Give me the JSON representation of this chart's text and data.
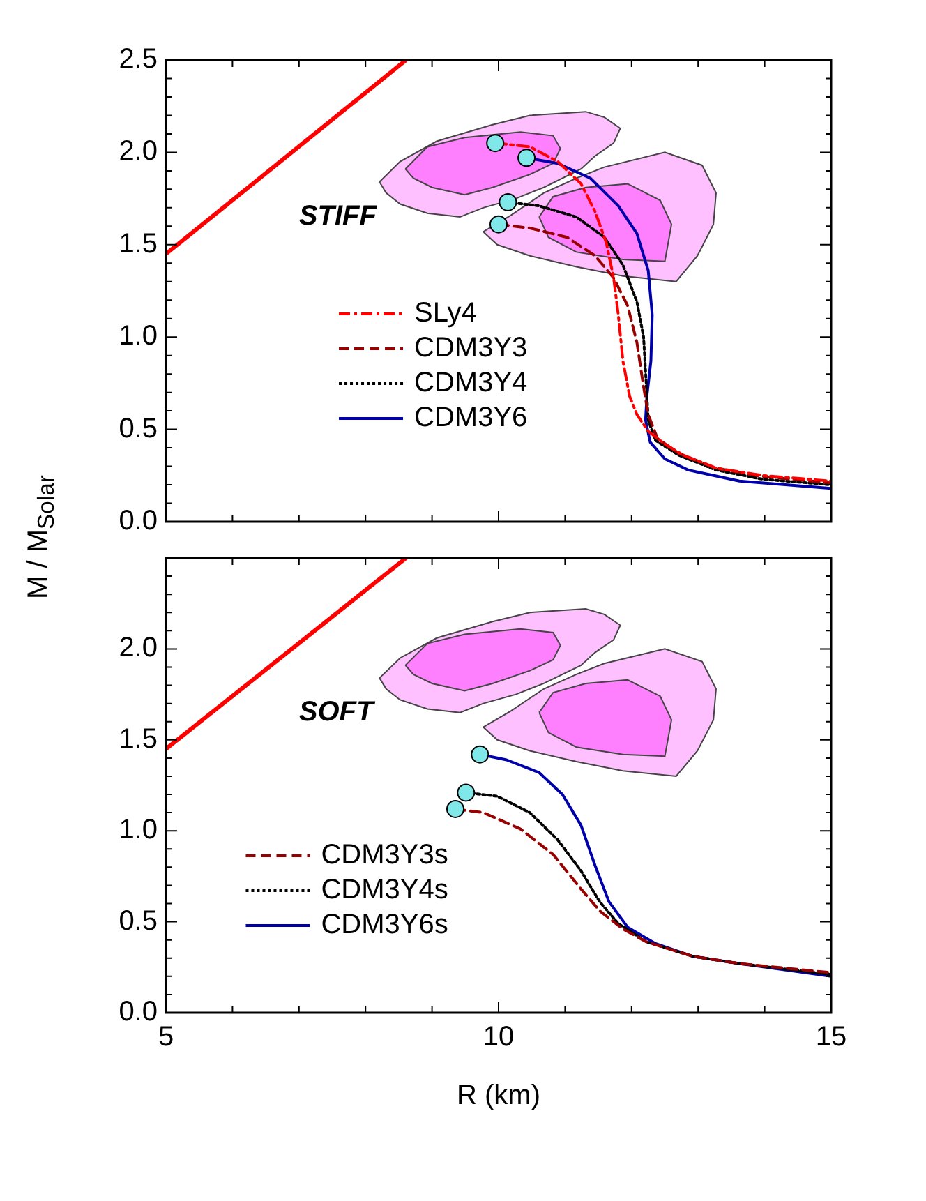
{
  "chart_data": [
    {
      "type": "line",
      "ylabel": "M / M$_{Solar}$",
      "xlim": [
        5,
        15
      ],
      "xticks": [
        5,
        {
          "value": 6,
          "label": null
        },
        {
          "value": 7,
          "label": null
        },
        {
          "value": 8,
          "label": null
        },
        {
          "value": 9,
          "label": null
        },
        10,
        {
          "value": 11,
          "label": null
        },
        {
          "value": 12,
          "label": null
        },
        {
          "value": 13,
          "label": null
        },
        {
          "value": 14,
          "label": null
        },
        15
      ],
      "ylim": [
        0,
        2.5
      ],
      "yticks": [
        {
          "value": 0,
          "label": "0.0"
        },
        {
          "value": 0.1,
          "label": null
        },
        {
          "value": 0.2,
          "label": null
        },
        {
          "value": 0.3,
          "label": null
        },
        {
          "value": 0.4,
          "label": null
        },
        0.5,
        {
          "value": 0.6,
          "label": null
        },
        {
          "value": 0.7,
          "label": null
        },
        {
          "value": 0.8,
          "label": null
        },
        {
          "value": 0.9,
          "label": null
        },
        {
          "value": 1,
          "label": "1.0"
        },
        {
          "value": 1.1,
          "label": null
        },
        {
          "value": 1.2,
          "label": null
        },
        {
          "value": 1.3,
          "label": null
        },
        {
          "value": 1.4,
          "label": null
        },
        1.5,
        {
          "value": 1.6,
          "label": null
        },
        {
          "value": 1.7,
          "label": null
        },
        {
          "value": 1.8,
          "label": null
        },
        {
          "value": 1.9,
          "label": null
        },
        {
          "value": 2,
          "label": "2.0"
        },
        {
          "value": 2.1,
          "label": null
        },
        {
          "value": 2.2,
          "label": null
        },
        {
          "value": 2.3,
          "label": null
        },
        {
          "value": 2.4,
          "label": null
        },
        2.5
      ],
      "tick_labels": "y",
      "legend": "center",
      "annotations": [
        "STIFF"
      ],
      "series": [
        {
          "type": "area",
          "color": "#ffc0ff",
          "x": [
            8.21,
            8.52,
            9.07,
            9.91,
            10.47,
            11.31,
            11.59,
            11.83,
            11.73,
            11.45,
            11.24,
            10.68,
            10.26,
            9.77,
            9.42,
            8.93,
            8.52,
            8.31
          ],
          "values": [
            1.84,
            1.95,
            2.06,
            2.15,
            2.2,
            2.22,
            2.19,
            2.13,
            2.05,
            1.98,
            1.91,
            1.81,
            1.75,
            1.7,
            1.65,
            1.67,
            1.72,
            1.78
          ]
        },
        {
          "type": "area",
          "color": "#ff80ff",
          "x": [
            8.6,
            8.93,
            9.49,
            10.33,
            10.82,
            10.93,
            10.82,
            10.47,
            9.91,
            9.49,
            9.0,
            8.72
          ],
          "values": [
            1.91,
            2.03,
            2.08,
            2.11,
            2.09,
            2.02,
            1.94,
            1.88,
            1.81,
            1.77,
            1.81,
            1.86
          ]
        },
        {
          "type": "area",
          "color": "#ffc0ff",
          "x": [
            9.77,
            10.19,
            10.68,
            11.17,
            11.59,
            12.5,
            13.06,
            13.27,
            13.23,
            12.99,
            12.67,
            11.87,
            11.17,
            10.47,
            9.98
          ],
          "values": [
            1.57,
            1.66,
            1.78,
            1.86,
            1.92,
            2.0,
            1.93,
            1.78,
            1.61,
            1.44,
            1.3,
            1.33,
            1.38,
            1.44,
            1.5
          ]
        },
        {
          "type": "area",
          "color": "#ff80ff",
          "x": [
            10.61,
            10.82,
            11.31,
            11.94,
            12.43,
            12.6,
            12.5,
            11.87,
            11.17,
            10.75
          ],
          "values": [
            1.65,
            1.76,
            1.81,
            1.83,
            1.74,
            1.61,
            1.41,
            1.42,
            1.46,
            1.54
          ]
        },
        {
          "type": "line",
          "color": "#ff0000",
          "line_style": "solid",
          "x": [
            5,
            8.61
          ],
          "values": [
            1.45,
            2.5
          ]
        },
        {
          "type": "line",
          "name": "SLy4",
          "color": "#ff0000",
          "line_style": "dashdot",
          "x": [
            9.95,
            10.47,
            10.89,
            11.24,
            11.45,
            11.62,
            11.73,
            11.8,
            11.87,
            11.97,
            12.08,
            12.25,
            12.5,
            12.78,
            13.27,
            13.97,
            15
          ],
          "values": [
            2.05,
            2.03,
            1.95,
            1.83,
            1.68,
            1.51,
            1.32,
            1.12,
            0.87,
            0.68,
            0.58,
            0.49,
            0.42,
            0.36,
            0.29,
            0.25,
            0.22
          ]
        },
        {
          "type": "line",
          "name": "CDM3Y3",
          "color": "#990000",
          "line_style": "dashed",
          "x": [
            10.0,
            10.47,
            11.03,
            11.45,
            11.73,
            11.94,
            12.08,
            12.18,
            12.25,
            12.39,
            12.71,
            13.27,
            13.97,
            15
          ],
          "values": [
            1.61,
            1.59,
            1.54,
            1.44,
            1.32,
            1.17,
            0.97,
            0.73,
            0.58,
            0.45,
            0.37,
            0.29,
            0.245,
            0.21
          ]
        },
        {
          "type": "line",
          "name": "CDM3Y4",
          "color": "#000000",
          "line_style": "dotted",
          "x": [
            10.14,
            10.61,
            11.17,
            11.59,
            11.87,
            12.08,
            12.18,
            12.22,
            12.25,
            12.36,
            12.71,
            13.27,
            13.97,
            15
          ],
          "values": [
            1.73,
            1.71,
            1.65,
            1.54,
            1.39,
            1.19,
            1.0,
            0.75,
            0.55,
            0.44,
            0.36,
            0.28,
            0.23,
            0.2
          ]
        },
        {
          "type": "line",
          "name": "CDM3Y6",
          "color": "#0000aa",
          "line_style": "solid",
          "x": [
            10.42,
            10.89,
            11.38,
            11.8,
            12.08,
            12.25,
            12.31,
            12.29,
            12.23,
            12.21,
            12.28,
            12.5,
            12.85,
            13.62,
            15
          ],
          "values": [
            1.97,
            1.94,
            1.86,
            1.71,
            1.56,
            1.36,
            1.12,
            0.87,
            0.68,
            0.55,
            0.43,
            0.34,
            0.28,
            0.22,
            0.18
          ]
        },
        {
          "type": "scatter",
          "color": "#80e8e8",
          "marker": "circle",
          "x": [
            9.95,
            10.42,
            10.14,
            10.0
          ],
          "values": [
            2.05,
            1.97,
            1.73,
            1.61
          ]
        }
      ]
    },
    {
      "type": "line",
      "xlabel": "R (km)",
      "xlim": [
        5,
        15
      ],
      "xticks": [
        5,
        {
          "value": 6,
          "label": null
        },
        {
          "value": 7,
          "label": null
        },
        {
          "value": 8,
          "label": null
        },
        {
          "value": 9,
          "label": null
        },
        10,
        {
          "value": 11,
          "label": null
        },
        {
          "value": 12,
          "label": null
        },
        {
          "value": 13,
          "label": null
        },
        {
          "value": 14,
          "label": null
        },
        15
      ],
      "ylim": [
        0,
        2.5
      ],
      "yticks": [
        {
          "value": 0,
          "label": "0.0"
        },
        {
          "value": 0.1,
          "label": null
        },
        {
          "value": 0.2,
          "label": null
        },
        {
          "value": 0.3,
          "label": null
        },
        {
          "value": 0.4,
          "label": null
        },
        0.5,
        {
          "value": 0.6,
          "label": null
        },
        {
          "value": 0.7,
          "label": null
        },
        {
          "value": 0.8,
          "label": null
        },
        {
          "value": 0.9,
          "label": null
        },
        {
          "value": 1,
          "label": "1.0"
        },
        {
          "value": 1.1,
          "label": null
        },
        {
          "value": 1.2,
          "label": null
        },
        {
          "value": 1.3,
          "label": null
        },
        {
          "value": 1.4,
          "label": null
        },
        1.5,
        {
          "value": 1.6,
          "label": null
        },
        {
          "value": 1.7,
          "label": null
        },
        {
          "value": 1.8,
          "label": null
        },
        {
          "value": 1.9,
          "label": null
        },
        {
          "value": 2,
          "label": "2.0"
        },
        {
          "value": 2.1,
          "label": null
        },
        {
          "value": 2.2,
          "label": null
        },
        {
          "value": 2.3,
          "label": null
        },
        {
          "value": 2.4,
          "label": null
        }
      ],
      "legend": "bottom left",
      "annotations": [
        "SOFT"
      ],
      "series": [
        {
          "type": "area",
          "color": "#ffc0ff",
          "x": [
            8.21,
            8.52,
            9.07,
            9.91,
            10.47,
            11.31,
            11.59,
            11.83,
            11.73,
            11.45,
            11.24,
            10.68,
            10.26,
            9.77,
            9.42,
            8.93,
            8.52,
            8.31
          ],
          "values": [
            1.84,
            1.95,
            2.06,
            2.15,
            2.2,
            2.22,
            2.19,
            2.13,
            2.05,
            1.98,
            1.91,
            1.81,
            1.75,
            1.7,
            1.65,
            1.67,
            1.72,
            1.78
          ]
        },
        {
          "type": "area",
          "color": "#ff80ff",
          "x": [
            8.6,
            8.93,
            9.49,
            10.33,
            10.82,
            10.93,
            10.82,
            10.47,
            9.91,
            9.49,
            9.0,
            8.72
          ],
          "values": [
            1.91,
            2.03,
            2.08,
            2.11,
            2.09,
            2.02,
            1.94,
            1.88,
            1.81,
            1.77,
            1.81,
            1.86
          ]
        },
        {
          "type": "area",
          "color": "#ffc0ff",
          "x": [
            9.77,
            10.19,
            10.68,
            11.17,
            11.59,
            12.5,
            13.06,
            13.27,
            13.23,
            12.99,
            12.67,
            11.87,
            11.17,
            10.47,
            9.98
          ],
          "values": [
            1.57,
            1.66,
            1.78,
            1.86,
            1.92,
            2.0,
            1.93,
            1.78,
            1.61,
            1.44,
            1.3,
            1.33,
            1.38,
            1.44,
            1.5
          ]
        },
        {
          "type": "area",
          "color": "#ff80ff",
          "x": [
            10.61,
            10.82,
            11.31,
            11.94,
            12.43,
            12.6,
            12.5,
            11.87,
            11.17,
            10.75
          ],
          "values": [
            1.65,
            1.76,
            1.81,
            1.83,
            1.74,
            1.61,
            1.41,
            1.42,
            1.46,
            1.54
          ]
        },
        {
          "type": "line",
          "color": "#ff0000",
          "line_style": "solid",
          "x": [
            5,
            8.61
          ],
          "values": [
            1.45,
            2.5
          ]
        },
        {
          "type": "line",
          "name": "CDM3Y3s",
          "color": "#990000",
          "line_style": "dashed",
          "x": [
            9.35,
            9.77,
            10.33,
            10.82,
            11.24,
            11.52,
            11.87,
            12.22,
            12.92,
            13.62,
            15
          ],
          "values": [
            1.12,
            1.1,
            1.01,
            0.87,
            0.68,
            0.56,
            0.46,
            0.39,
            0.31,
            0.27,
            0.22
          ]
        },
        {
          "type": "line",
          "name": "CDM3Y4s",
          "color": "#000000",
          "line_style": "dotted",
          "x": [
            9.51,
            9.98,
            10.47,
            10.89,
            11.24,
            11.52,
            11.8,
            12.22,
            12.92,
            13.62,
            15
          ],
          "values": [
            1.21,
            1.19,
            1.1,
            0.95,
            0.78,
            0.61,
            0.49,
            0.39,
            0.31,
            0.27,
            0.21
          ]
        },
        {
          "type": "line",
          "name": "CDM3Y6s",
          "color": "#0000aa",
          "line_style": "solid",
          "x": [
            9.72,
            10.12,
            10.61,
            10.96,
            11.24,
            11.45,
            11.66,
            11.94,
            12.36,
            12.92,
            13.62,
            15
          ],
          "values": [
            1.42,
            1.39,
            1.32,
            1.2,
            1.03,
            0.81,
            0.61,
            0.47,
            0.38,
            0.31,
            0.27,
            0.2
          ]
        },
        {
          "type": "scatter",
          "color": "#80e8e8",
          "marker": "circle",
          "x": [
            9.72,
            9.51,
            9.35
          ],
          "values": [
            1.42,
            1.21,
            1.12
          ]
        }
      ]
    }
  ]
}
